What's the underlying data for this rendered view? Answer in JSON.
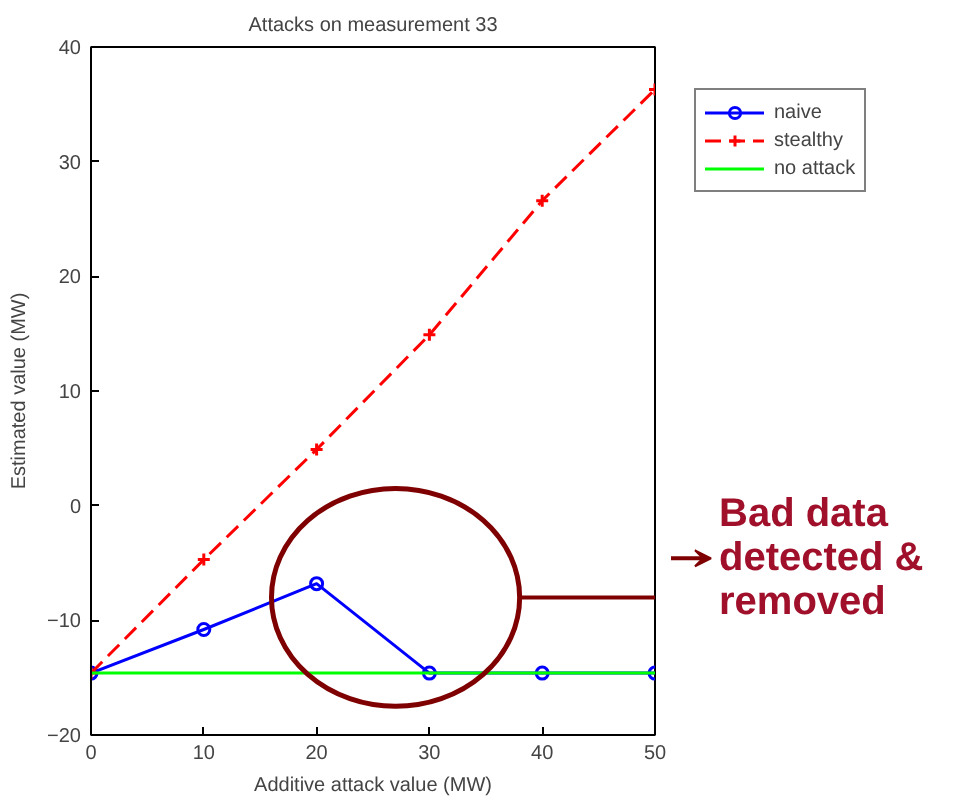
{
  "chart_data": {
    "type": "line",
    "title": "Attacks on measurement 33",
    "xlabel": "Additive attack value (MW)",
    "ylabel": "Estimated value (MW)",
    "x": [
      0,
      10,
      20,
      30,
      40,
      50
    ],
    "series": [
      {
        "name": "naive",
        "color": "#0000ff",
        "marker": "circle",
        "line_style": "solid",
        "values": [
          -14.6,
          -10.8,
          -6.8,
          -14.6,
          -14.6,
          -14.6
        ]
      },
      {
        "name": "stealthy",
        "color": "#ff0000",
        "marker": "cross",
        "line_style": "dashed",
        "values": [
          -14.6,
          -4.7,
          4.9,
          14.9,
          26.6,
          36.3
        ]
      },
      {
        "name": "no attack",
        "color": "#00ff00",
        "line_style": "solid",
        "values": [
          -14.6,
          -14.6,
          -14.6,
          -14.6,
          -14.6,
          -14.6
        ]
      }
    ],
    "xlim": [
      0,
      50
    ],
    "xticks": [
      0,
      10,
      20,
      30,
      40,
      50
    ],
    "ylim": [
      -20,
      40
    ],
    "yticks": [
      -20,
      -10,
      0,
      10,
      20,
      30,
      40
    ],
    "grid": false,
    "legend": "top right",
    "annotations": [
      "Bad data\ndetected &\nremoved"
    ]
  }
}
